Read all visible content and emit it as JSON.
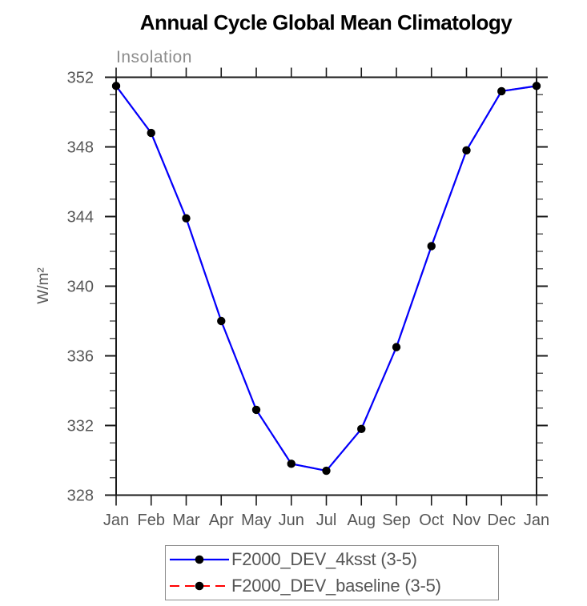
{
  "chart_data": {
    "type": "line",
    "title": "Annual Cycle Global Mean Climatology",
    "subtitle": "Insolation",
    "ylabel": "W/m²",
    "xlabel": "",
    "categories": [
      "Jan",
      "Feb",
      "Mar",
      "Apr",
      "May",
      "Jun",
      "Jul",
      "Aug",
      "Sep",
      "Oct",
      "Nov",
      "Dec",
      "Jan"
    ],
    "series": [
      {
        "name": "F2000_DEV_4ksst (3-5)",
        "color": "#0000ff",
        "line_style": "solid",
        "marker": "filled-black-circle",
        "values": [
          351.5,
          348.8,
          343.9,
          338.0,
          332.9,
          329.8,
          329.4,
          331.8,
          336.5,
          342.3,
          347.8,
          351.2,
          351.5
        ]
      },
      {
        "name": "F2000_DEV_baseline (3-5)",
        "color": "#ff0000",
        "line_style": "dashed",
        "marker": "filled-black-circle",
        "values": [
          351.5,
          348.8,
          343.9,
          338.0,
          332.9,
          329.8,
          329.4,
          331.8,
          336.5,
          342.3,
          347.8,
          351.2,
          351.5
        ],
        "note": "curve coincides with F2000_DEV_4ksst and is hidden beneath the blue line"
      }
    ],
    "ylim": [
      328,
      352
    ],
    "yticks": [
      328,
      332,
      336,
      340,
      344,
      348,
      352
    ],
    "ytick_major_step": 4,
    "ytick_minor_step": 1,
    "grid": false,
    "legend_position": "bottom-center"
  },
  "colors": {
    "axis": "#1a1a1a",
    "minor_tick": "#4d4d4d",
    "tick_label": "#565656",
    "title": "#000000",
    "subtitle": "#8c8c8c",
    "marker": "#000000",
    "legend_border": "#8c8c8c",
    "background": "#ffffff"
  }
}
